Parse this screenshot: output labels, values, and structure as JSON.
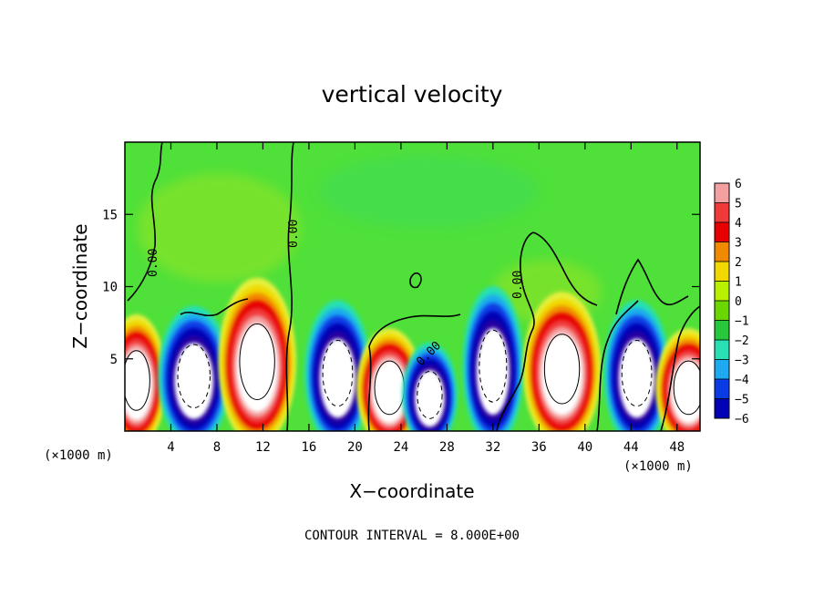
{
  "chart_data": {
    "type": "heatmap",
    "title": "vertical velocity",
    "xlabel": "X−coordinate",
    "ylabel": "Z−coordinate",
    "x_unit": "(×1000 m)",
    "x_unit_right": "(×1000 m)",
    "xlim": [
      0,
      50
    ],
    "ylim": [
      0,
      20
    ],
    "x_ticks": [
      4,
      8,
      12,
      16,
      20,
      24,
      28,
      32,
      36,
      40,
      44,
      48
    ],
    "y_ticks": [
      5,
      10,
      15
    ],
    "x_tick_labels": [
      "4",
      "8",
      "12",
      "16",
      "20",
      "24",
      "28",
      "32",
      "36",
      "40",
      "44",
      "48"
    ],
    "y_tick_labels": [
      "5",
      "10",
      "15"
    ],
    "colorbar": {
      "levels": [
        6,
        5,
        4,
        3,
        2,
        1,
        0,
        -1,
        -2,
        -3,
        -4,
        -5,
        -6
      ],
      "labels": [
        "6",
        "5",
        "4",
        "3",
        "2",
        "1",
        "0",
        "−1",
        "−2",
        "−3",
        "−4",
        "−5",
        "−6"
      ],
      "colors": [
        "#f4a0a0",
        "#f03a3a",
        "#e60000",
        "#f08a00",
        "#f0d800",
        "#b8f000",
        "#6ad800",
        "#28c83c",
        "#28e0b4",
        "#1eaaf0",
        "#0a3ce6",
        "#0000b4",
        "#7800a0"
      ]
    },
    "cells": [
      {
        "x": 1.0,
        "z": 3.5,
        "w": 4,
        "sign": 1
      },
      {
        "x": 6.0,
        "z": 3.8,
        "w": -7,
        "sign": -1
      },
      {
        "x": 11.5,
        "z": 4.8,
        "w": 7,
        "sign": 1
      },
      {
        "x": 18.5,
        "z": 4.0,
        "w": -6,
        "sign": -1
      },
      {
        "x": 23.0,
        "z": 3.0,
        "w": 5,
        "sign": 1
      },
      {
        "x": 26.5,
        "z": 2.5,
        "w": -4,
        "sign": -1
      },
      {
        "x": 32.0,
        "z": 4.5,
        "w": -5,
        "sign": -1
      },
      {
        "x": 38.0,
        "z": 4.3,
        "w": 7,
        "sign": 1
      },
      {
        "x": 44.5,
        "z": 4.0,
        "w": -6,
        "sign": -1
      },
      {
        "x": 49.0,
        "z": 3.0,
        "w": 5,
        "sign": 1
      }
    ],
    "contour_labels": [
      "0.00",
      "0.00",
      "0.00",
      "0.00"
    ],
    "footer": "CONTOUR INTERVAL = 8.000E+00",
    "colors": {
      "background": "#6ad800",
      "line": "#000000"
    }
  }
}
